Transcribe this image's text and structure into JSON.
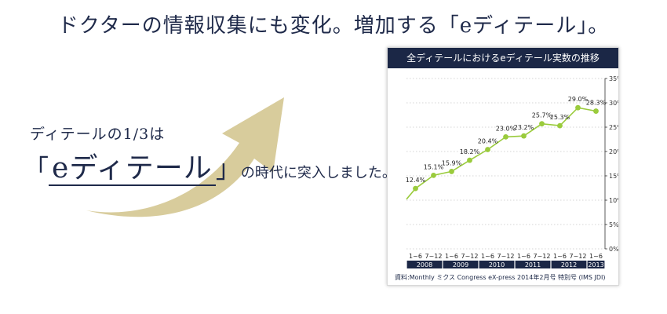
{
  "headline": "ドクターの情報収集にも変化。増加する「eディテール」。",
  "lead": {
    "line1": "ディテールの1/3は",
    "open_bracket": "「",
    "term": "eディテール",
    "close_bracket": "」",
    "line2_tail": "の時代に突入しました。"
  },
  "colors": {
    "navy": "#1b2746",
    "line": "#9acb3c",
    "arrow": "#d8cc9c"
  },
  "chart_data": {
    "type": "line",
    "title": "全ディテールにおけるeディテール実数の推移",
    "categories": [
      "1~6",
      "7~12",
      "1~6",
      "7~12",
      "1~6",
      "7~12",
      "1~6",
      "7~12",
      "1~6",
      "7~12",
      "1~6"
    ],
    "years": [
      "2008",
      "2009",
      "2010",
      "2011",
      "2012",
      "2013"
    ],
    "values": [
      12.4,
      15.1,
      15.9,
      18.2,
      20.4,
      23.0,
      23.2,
      25.7,
      25.3,
      29.0,
      28.3
    ],
    "value_labels": [
      "12.4%",
      "15.1%",
      "15.9%",
      "18.2%",
      "20.4%",
      "23.0%",
      "23.2%",
      "25.7%",
      "25.3%",
      "29.0%",
      "28.3%"
    ],
    "y_ticks": [
      "0%",
      "5%",
      "10%",
      "15%",
      "20%",
      "25%",
      "30%",
      "35%"
    ],
    "ylim": [
      0,
      35
    ],
    "grid": true,
    "y_axis_side": "right",
    "source": "資料:Monthly ミクス Congress eX-press 2014年2月号 特別号 (IMS JDI)"
  }
}
